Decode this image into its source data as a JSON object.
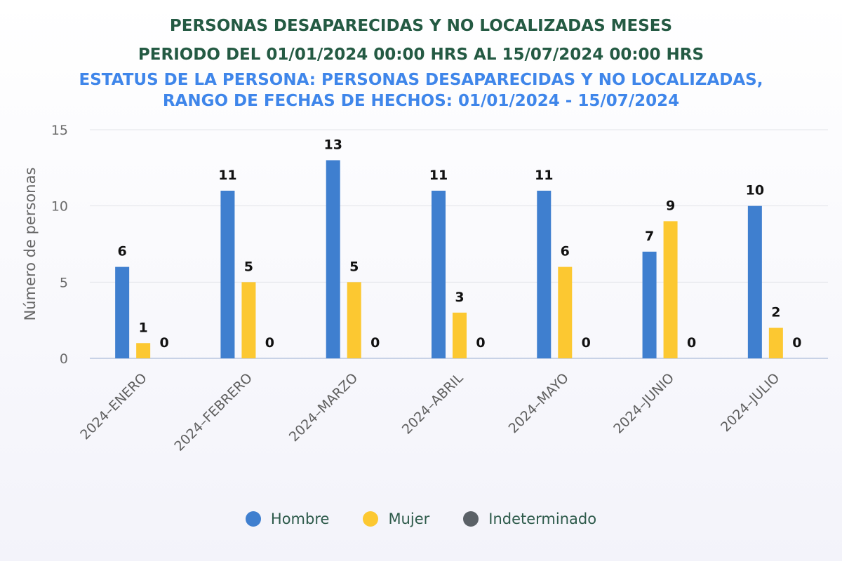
{
  "title": "PERSONAS DESAPARECIDAS Y NO LOCALIZADAS MESES",
  "period": "PERIODO DEL 01/01/2024 00:00 HRS AL 15/07/2024 00:00 HRS",
  "subtitle_line1": "ESTATUS DE LA PERSONA: PERSONAS DESAPARECIDAS Y NO LOCALIZADAS,",
  "subtitle_line2": "RANGO DE FECHAS DE HECHOS: 01/01/2024 - 15/07/2024",
  "chart_data": {
    "type": "bar",
    "ylabel": "Número de personas",
    "xlabel": "",
    "ylim": [
      0,
      15
    ],
    "yticks": [
      0,
      5,
      10,
      15
    ],
    "grid": true,
    "legend_position": "bottom",
    "categories": [
      "2024–ENERO",
      "2024–FEBRERO",
      "2024–MARZO",
      "2024–ABRIL",
      "2024–MAYO",
      "2024–JUNIO",
      "2024–JULIO"
    ],
    "series": [
      {
        "name": "Hombre",
        "color": "#3f7fcf",
        "values": [
          6,
          11,
          13,
          11,
          11,
          7,
          10
        ]
      },
      {
        "name": "Mujer",
        "color": "#fcc831",
        "values": [
          1,
          5,
          5,
          3,
          6,
          9,
          2
        ]
      },
      {
        "name": "Indeterminado",
        "color": "#5b6167",
        "values": [
          0,
          0,
          0,
          0,
          0,
          0,
          0
        ]
      }
    ]
  }
}
